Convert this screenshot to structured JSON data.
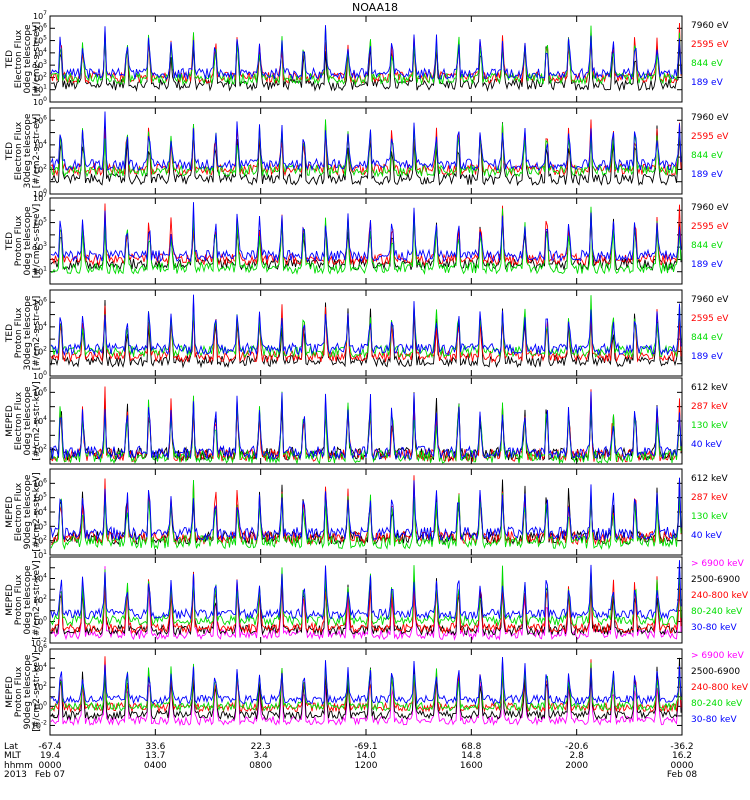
{
  "title": "NOAA18",
  "colors": {
    "blue": "#0000ff",
    "red": "#ff0000",
    "green": "#00dd00",
    "black": "#000000",
    "magenta": "#ff00ff"
  },
  "chart_data": [
    {
      "type": "line",
      "ylabel": [
        "TED",
        "Electron Flux",
        "0deg telescope",
        "[#/cm2-s-str-eV]"
      ],
      "ylog": true,
      "ylim_exp": [
        0,
        7
      ],
      "tick_exps": [
        0,
        1,
        2,
        3,
        4,
        5,
        6,
        7
      ],
      "series": [
        {
          "name": "7960 eV",
          "color": "black",
          "base": 1.4
        },
        {
          "name": "2595 eV",
          "color": "red",
          "base": 2.0
        },
        {
          "name": "844 eV",
          "color": "green",
          "base": 1.9
        },
        {
          "name": "189 eV",
          "color": "blue",
          "base": 2.3
        }
      ]
    },
    {
      "type": "line",
      "ylabel": [
        "TED",
        "Electron Flux",
        "30deg telescope",
        "[#/cm2-s-str-eV]"
      ],
      "ylog": true,
      "ylim_exp": [
        0,
        7
      ],
      "tick_exps": [
        0,
        2,
        4,
        6
      ],
      "series": [
        {
          "name": "7960 eV",
          "color": "black",
          "base": 1.2
        },
        {
          "name": "2595 eV",
          "color": "red",
          "base": 2.0
        },
        {
          "name": "844 eV",
          "color": "green",
          "base": 1.9
        },
        {
          "name": "189 eV",
          "color": "blue",
          "base": 2.4
        }
      ]
    },
    {
      "type": "line",
      "ylabel": [
        "TED",
        "Proton Flux",
        "0deg telescope",
        "[#/cm2-s-str-eV]"
      ],
      "ylog": true,
      "ylim_exp": [
        0,
        7
      ],
      "tick_exps": [
        1,
        3,
        5,
        7
      ],
      "series": [
        {
          "name": "7960 eV",
          "color": "black",
          "base": 1.6
        },
        {
          "name": "2595 eV",
          "color": "red",
          "base": 2.0
        },
        {
          "name": "844 eV",
          "color": "green",
          "base": 1.3
        },
        {
          "name": "189 eV",
          "color": "blue",
          "base": 2.3
        }
      ]
    },
    {
      "type": "line",
      "ylabel": [
        "TED",
        "Proton Flux",
        "30deg telescope",
        "[#/cm2-s-str-eV]"
      ],
      "ylog": true,
      "ylim_exp": [
        0,
        7
      ],
      "tick_exps": [
        0,
        2,
        4,
        6
      ],
      "series": [
        {
          "name": "7960 eV",
          "color": "black",
          "base": 1.2
        },
        {
          "name": "2595 eV",
          "color": "red",
          "base": 1.6
        },
        {
          "name": "844 eV",
          "color": "green",
          "base": 2.0
        },
        {
          "name": "189 eV",
          "color": "blue",
          "base": 2.2
        }
      ]
    },
    {
      "type": "line",
      "ylabel": [
        "MEPED",
        "Electron Flux",
        "0deg telescope",
        "[#/cm2-s-str-keV]"
      ],
      "ylog": true,
      "ylim_exp": [
        1,
        7
      ],
      "tick_exps": [
        2,
        4,
        6
      ],
      "series": [
        {
          "name": "612 keV",
          "color": "black",
          "base": 1.7
        },
        {
          "name": "287 keV",
          "color": "red",
          "base": 1.6
        },
        {
          "name": "130 keV",
          "color": "green",
          "base": 1.5
        },
        {
          "name": "40 keV",
          "color": "blue",
          "base": 1.8
        }
      ]
    },
    {
      "type": "line",
      "ylabel": [
        "MEPED",
        "Electron Flux",
        "90deg telescope",
        "[#/cm2-s-str-keV]"
      ],
      "ylog": true,
      "ylim_exp": [
        1,
        7
      ],
      "tick_exps": [
        1,
        2,
        3,
        4,
        5,
        6
      ],
      "series": [
        {
          "name": "612 keV",
          "color": "black",
          "base": 2.2
        },
        {
          "name": "287 keV",
          "color": "red",
          "base": 2.2
        },
        {
          "name": "130 keV",
          "color": "green",
          "base": 1.9
        },
        {
          "name": "40 keV",
          "color": "blue",
          "base": 2.5
        }
      ]
    },
    {
      "type": "line",
      "ylabel": [
        "MEPED",
        "Proton Flux",
        "0deg telescope",
        "[#/cm2-s-str-keV]"
      ],
      "ylog": true,
      "ylim_exp": [
        -2,
        6
      ],
      "tick_exps": [
        -2,
        0,
        2,
        4
      ],
      "series": [
        {
          "name": "> 6900 keV",
          "color": "magenta",
          "base": -1.2
        },
        {
          "name": "2500-6900",
          "color": "black",
          "base": -0.8
        },
        {
          "name": "240-800 keV",
          "color": "red",
          "base": -0.6
        },
        {
          "name": "80-240 keV",
          "color": "green",
          "base": 0.1
        },
        {
          "name": "30-80 keV",
          "color": "blue",
          "base": 0.7
        }
      ]
    },
    {
      "type": "line",
      "ylabel": [
        "MEPED",
        "Proton Flux",
        "90deg telescope",
        "[#/cm2-s-str-keV]"
      ],
      "ylog": true,
      "ylim_exp": [
        -3,
        6
      ],
      "tick_exps": [
        -2,
        0,
        2,
        4,
        6
      ],
      "series": [
        {
          "name": "> 6900 keV",
          "color": "magenta",
          "base": -1.5
        },
        {
          "name": "2500-6900",
          "color": "black",
          "base": -0.9
        },
        {
          "name": "240-800 keV",
          "color": "red",
          "base": -0.1
        },
        {
          "name": "80-240 keV",
          "color": "green",
          "base": 0.0
        },
        {
          "name": "30-80 keV",
          "color": "blue",
          "base": 0.7
        }
      ]
    }
  ],
  "x_axis": {
    "row_labels": [
      "Lat",
      "MLT",
      "hhmm",
      "2013"
    ],
    "ticks": [
      {
        "lat": "-67.4",
        "mlt": "19.4",
        "hhmm": "0000",
        "date": "Feb 07"
      },
      {
        "lat": "33.6",
        "mlt": "13.7",
        "hhmm": "0400",
        "date": ""
      },
      {
        "lat": "22.3",
        "mlt": "3.4",
        "hhmm": "0800",
        "date": ""
      },
      {
        "lat": "-69.1",
        "mlt": "14.0",
        "hhmm": "1200",
        "date": ""
      },
      {
        "lat": "68.8",
        "mlt": "14.8",
        "hhmm": "1600",
        "date": ""
      },
      {
        "lat": "-20.6",
        "mlt": "2.8",
        "hhmm": "2000",
        "date": ""
      },
      {
        "lat": "-36.2",
        "mlt": "16.2",
        "hhmm": "0000",
        "date": "Feb 08"
      }
    ]
  }
}
